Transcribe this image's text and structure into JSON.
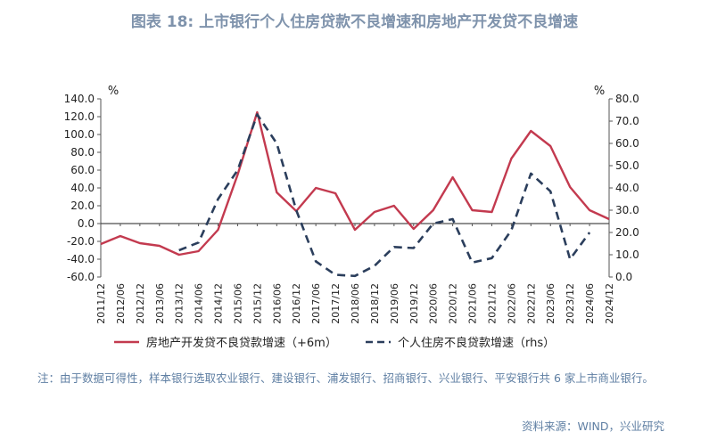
{
  "title": "图表 18: 上市银行个人住房贷款不良增速和房地产开发贷不良增速",
  "note": "注：由于数据可得性，样本银行选取农业银行、建设银行、浦发银行、招商银行、兴业银行、平安银行共 6 家上市商业银行。",
  "source": "资料来源：WIND，兴业研究",
  "chart_data": {
    "type": "line",
    "x": [
      "2011/12",
      "2012/06",
      "2012/12",
      "2013/06",
      "2013/12",
      "2014/06",
      "2014/12",
      "2015/06",
      "2015/12",
      "2016/06",
      "2016/12",
      "2017/06",
      "2017/12",
      "2018/06",
      "2018/12",
      "2019/06",
      "2019/12",
      "2020/06",
      "2020/12",
      "2021/06",
      "2021/12",
      "2022/06",
      "2022/12",
      "2023/06",
      "2023/12",
      "2024/06",
      "2024/12"
    ],
    "y_left": {
      "unit": "%",
      "ylim": [
        -60,
        140
      ],
      "ticks": [
        "-60.0",
        "-40.0",
        "-20.0",
        "0.0",
        "20.0",
        "40.0",
        "60.0",
        "80.0",
        "100.0",
        "120.0",
        "140.0"
      ]
    },
    "y_right": {
      "unit": "%",
      "ylim": [
        0,
        80
      ],
      "ticks": [
        "0.0",
        "10.0",
        "20.0",
        "30.0",
        "40.0",
        "50.0",
        "60.0",
        "70.0",
        "80.0"
      ]
    },
    "series": [
      {
        "name": "房地产开发贷不良贷款增速（+6m）",
        "axis": "left",
        "color": "#c33a4f",
        "dash": false,
        "values": [
          -23,
          -14,
          -22,
          -25,
          -35,
          -31,
          -7,
          55,
          125,
          35,
          14,
          40,
          34,
          -7,
          13,
          20,
          -6,
          15,
          52,
          15,
          13,
          73,
          104,
          87,
          41,
          15,
          5
        ]
      },
      {
        "name": "个人住房不良贷款增速（rhs）",
        "axis": "right",
        "color": "#2b3e5c",
        "dash": true,
        "values": [
          null,
          null,
          null,
          null,
          12.0,
          15.5,
          35.0,
          48.0,
          73.0,
          60.0,
          30.0,
          7.0,
          1.0,
          0.5,
          5.0,
          13.5,
          13.0,
          24.0,
          26.0,
          6.5,
          8.5,
          21.0,
          46.5,
          38.5,
          8.0,
          20.0,
          null
        ]
      }
    ],
    "legend_position": "bottom",
    "grid": false
  }
}
